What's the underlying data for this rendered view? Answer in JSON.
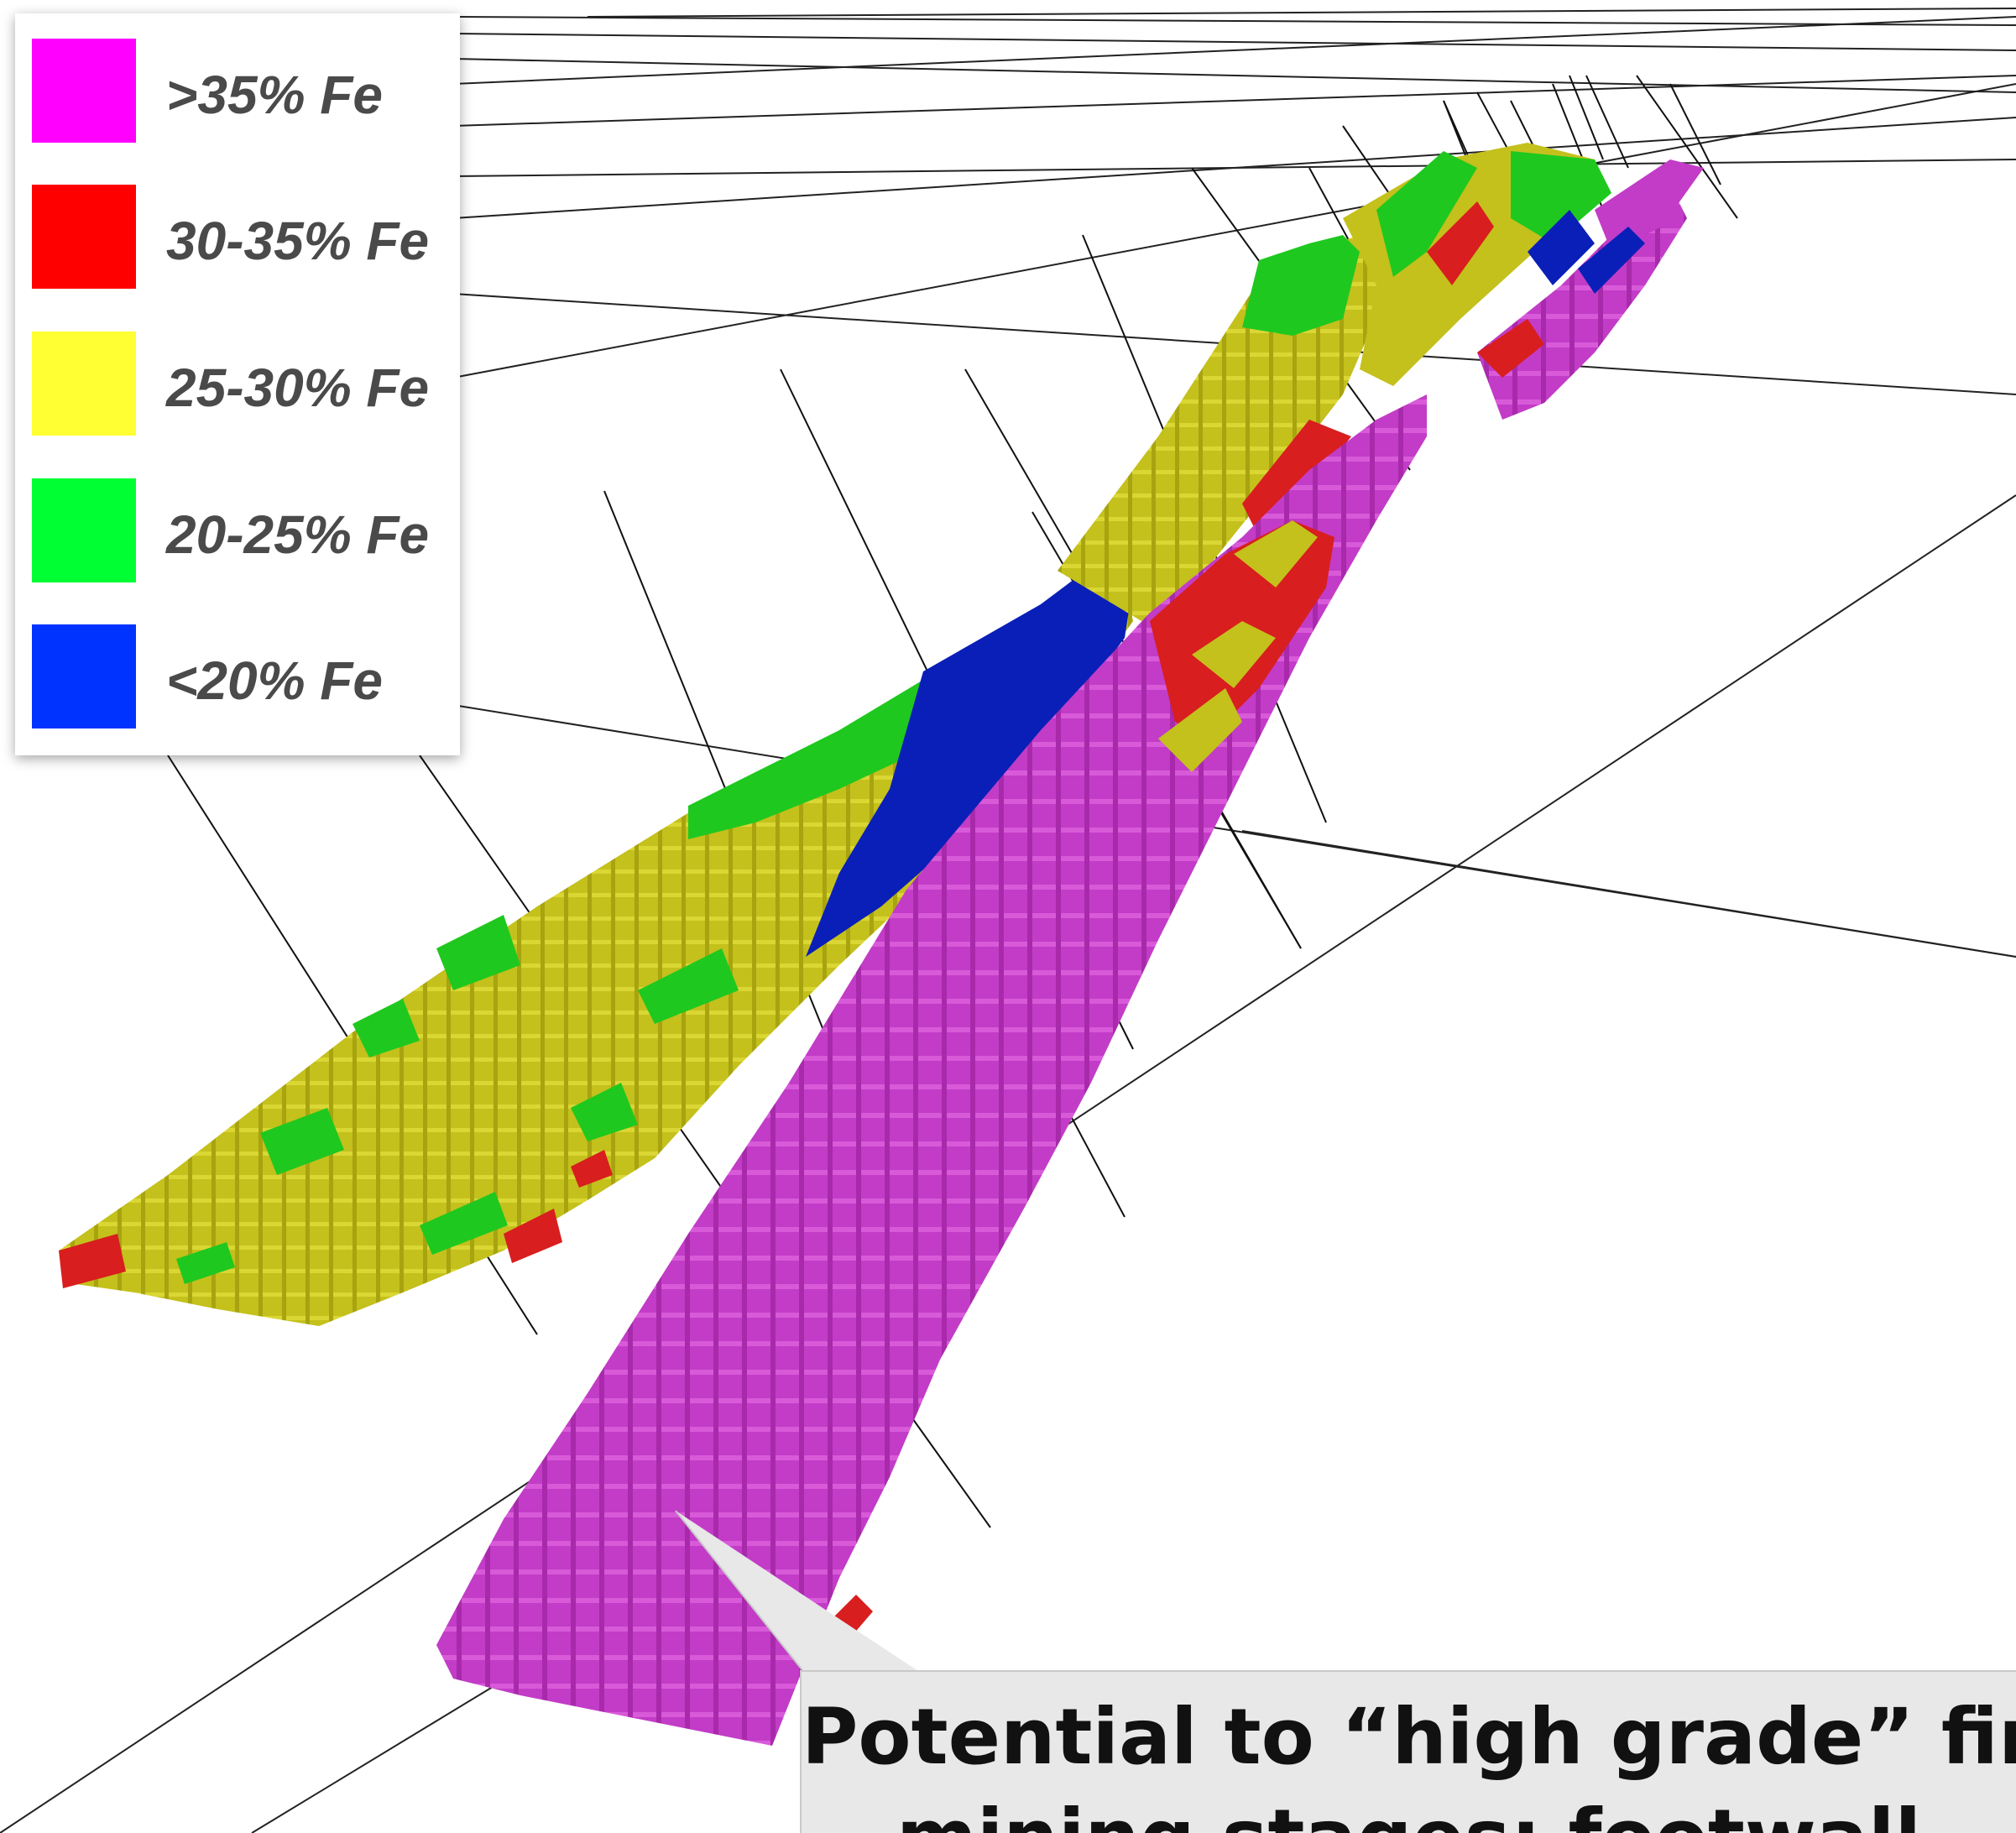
{
  "legend": {
    "items": [
      {
        "label": ">35% Fe",
        "color": "#ff00ff"
      },
      {
        "label": "30-35% Fe",
        "color": "#ff0000"
      },
      {
        "label": "25-30% Fe",
        "color": "#ffff33"
      },
      {
        "label": "20-25% Fe",
        "color": "#00ff33"
      },
      {
        "label": "<20% Fe",
        "color": "#0033ff"
      }
    ]
  },
  "model_colors": {
    "magenta": "#c23cc7",
    "yellow": "#c4c01c",
    "green": "#1fc81f",
    "blue": "#0a1fb8",
    "red": "#d81e1e"
  },
  "callout": {
    "text": "Potential to “high grade” first\nmining stages; footwall"
  }
}
